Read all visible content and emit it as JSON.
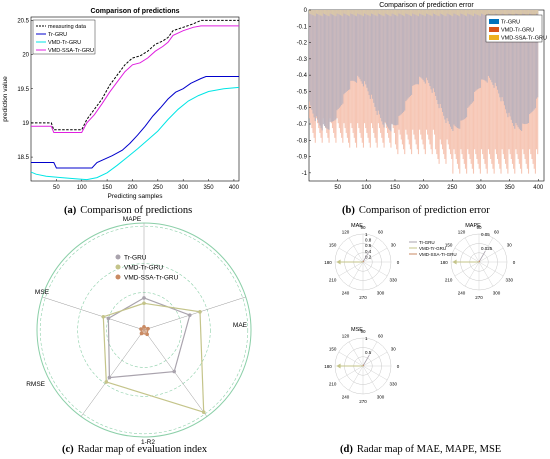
{
  "chart_data": [
    {
      "type": "line",
      "panel": "a",
      "title": "Comparison of predictions",
      "xlabel": "Predicting samples",
      "ylabel": "prediction value",
      "xlim": [
        0,
        410
      ],
      "ylim": [
        18.15,
        20.55
      ],
      "xticks": [
        50,
        100,
        150,
        200,
        250,
        300,
        350,
        400
      ],
      "yticks": [
        18.5,
        19,
        19.5,
        20,
        20.5
      ],
      "legend_position": "top-left",
      "colors": {
        "measuring": "#000000",
        "tr": "#0000cc",
        "vmd": "#00e5e5",
        "ssa": "#e020e0"
      },
      "series": [
        {
          "name": "measuring data",
          "points": [
            [
              0,
              19.0
            ],
            [
              40,
              19.0
            ],
            [
              45,
              18.9
            ],
            [
              100,
              18.9
            ],
            [
              110,
              19.05
            ],
            [
              125,
              19.2
            ],
            [
              140,
              19.35
            ],
            [
              155,
              19.55
            ],
            [
              170,
              19.7
            ],
            [
              185,
              19.85
            ],
            [
              200,
              19.95
            ],
            [
              215,
              19.98
            ],
            [
              230,
              20.05
            ],
            [
              245,
              20.15
            ],
            [
              260,
              20.2
            ],
            [
              270,
              20.25
            ],
            [
              280,
              20.35
            ],
            [
              300,
              20.4
            ],
            [
              320,
              20.45
            ],
            [
              335,
              20.5
            ],
            [
              410,
              20.5
            ]
          ]
        },
        {
          "name": "Tr-GRU",
          "points": [
            [
              0,
              18.42
            ],
            [
              45,
              18.42
            ],
            [
              50,
              18.34
            ],
            [
              120,
              18.34
            ],
            [
              130,
              18.42
            ],
            [
              160,
              18.52
            ],
            [
              180,
              18.6
            ],
            [
              195,
              18.7
            ],
            [
              210,
              18.82
            ],
            [
              225,
              18.95
            ],
            [
              240,
              19.1
            ],
            [
              255,
              19.22
            ],
            [
              270,
              19.35
            ],
            [
              285,
              19.45
            ],
            [
              300,
              19.5
            ],
            [
              315,
              19.58
            ],
            [
              335,
              19.65
            ],
            [
              345,
              19.68
            ],
            [
              410,
              19.68
            ]
          ]
        },
        {
          "name": "VMD-Tr-GRU",
          "points": [
            [
              0,
              18.28
            ],
            [
              10,
              18.25
            ],
            [
              30,
              18.22
            ],
            [
              60,
              18.2
            ],
            [
              90,
              18.18
            ],
            [
              110,
              18.17
            ],
            [
              130,
              18.2
            ],
            [
              150,
              18.27
            ],
            [
              170,
              18.38
            ],
            [
              190,
              18.5
            ],
            [
              210,
              18.62
            ],
            [
              230,
              18.75
            ],
            [
              250,
              18.88
            ],
            [
              270,
              19.05
            ],
            [
              290,
              19.2
            ],
            [
              310,
              19.32
            ],
            [
              330,
              19.4
            ],
            [
              350,
              19.46
            ],
            [
              380,
              19.5
            ],
            [
              410,
              19.52
            ]
          ]
        },
        {
          "name": "VMD-SSA-Tr-GRU",
          "points": [
            [
              0,
              18.95
            ],
            [
              40,
              18.95
            ],
            [
              45,
              18.86
            ],
            [
              100,
              18.86
            ],
            [
              110,
              19.0
            ],
            [
              125,
              19.12
            ],
            [
              140,
              19.28
            ],
            [
              155,
              19.45
            ],
            [
              170,
              19.6
            ],
            [
              185,
              19.75
            ],
            [
              200,
              19.85
            ],
            [
              215,
              19.88
            ],
            [
              230,
              19.95
            ],
            [
              245,
              20.05
            ],
            [
              260,
              20.12
            ],
            [
              270,
              20.18
            ],
            [
              280,
              20.28
            ],
            [
              300,
              20.35
            ],
            [
              320,
              20.4
            ],
            [
              335,
              20.42
            ],
            [
              410,
              20.42
            ]
          ]
        }
      ]
    },
    {
      "type": "bar",
      "panel": "b",
      "title": "Comparison of prediction error",
      "xlim": [
        0,
        410
      ],
      "ylim": [
        -1.05,
        0
      ],
      "xticks": [
        50,
        100,
        150,
        200,
        250,
        300,
        350,
        400
      ],
      "yticks": [
        0,
        -0.1,
        -0.2,
        -0.3,
        -0.4,
        -0.5,
        -0.6,
        -0.7,
        -0.8,
        -0.9,
        -1
      ],
      "legend_position": "top-right",
      "colors": {
        "tr": "#b8b0bc",
        "vmd": "#f4bba6",
        "ssa": "#d9c7a8"
      },
      "series": [
        {
          "name": "Tr-GRU",
          "color_key": "tr",
          "legend_color": "#0072bd"
        },
        {
          "name": "VMD-Tr-GRU",
          "color_key": "vmd",
          "legend_color": "#d95319"
        },
        {
          "name": "VMD-SSA-Tr-GRU",
          "color_key": "ssa",
          "legend_color": "#edb120"
        }
      ]
    },
    {
      "type": "radar",
      "panel": "c",
      "axes": [
        "MAPE",
        "MAE",
        "1-R2",
        "RMSE",
        "MSE"
      ],
      "colors": {
        "tr": "#a9a3ad",
        "vmd": "#c4c48a",
        "ssa": "#c98a63",
        "grid": "#8bcfa8"
      },
      "series": [
        {
          "name": "Tr-GRU",
          "values": [
            0.3,
            0.45,
            0.48,
            0.55,
            0.35
          ]
        },
        {
          "name": "VMD-Tr-GRU",
          "values": [
            0.25,
            0.55,
            0.95,
            0.6,
            0.4
          ]
        },
        {
          "name": "VMD-SSA-Tr-GRU",
          "values": [
            0.03,
            0.04,
            0.05,
            0.04,
            0.03
          ]
        }
      ]
    },
    {
      "type": "polar",
      "panel": "d",
      "plots": [
        {
          "title": "MAE",
          "rticks": [
            "0.2",
            "0.4",
            "0.6",
            "0.8",
            "1"
          ]
        },
        {
          "title": "MAPE",
          "rticks": [
            "0.025",
            "0.05"
          ]
        },
        {
          "title": "MSE",
          "rticks": [
            "0.5",
            "1"
          ]
        }
      ],
      "angle_labels": [
        "90",
        "60",
        "30",
        "0",
        "330",
        "300",
        "270",
        "240",
        "210",
        "180",
        "150",
        "120"
      ],
      "legend": [
        "Tr-GRU",
        "VMD-Tr-GRU",
        "VMD-SSA-Tr-GRU"
      ],
      "colors": {
        "tr": "#a9a3ad",
        "vmd": "#c4c48a",
        "ssa": "#c98a63",
        "grid": "#c8c8c8"
      }
    }
  ],
  "captions": {
    "a": {
      "label": "(a)",
      "text": "Comparison of predictions"
    },
    "b": {
      "label": "(b)",
      "text": "Comparison of prediction error"
    },
    "c": {
      "label": "(c)",
      "text": "Radar map of evaluation index"
    },
    "d": {
      "label": "(d)",
      "text": "Radar map of MAE, MAPE, MSE"
    }
  }
}
